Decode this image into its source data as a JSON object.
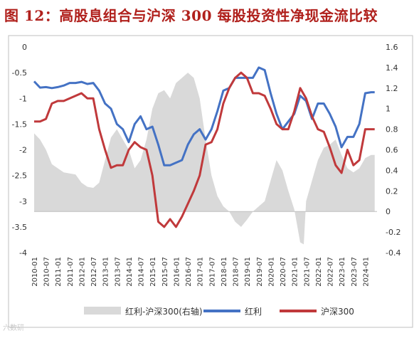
{
  "title": "图 12：高股息组合与沪深 300 每股投资性净现金流比较",
  "watermark": "六数研",
  "chart_data": {
    "type": "line+area",
    "left_axis": {
      "min": -4,
      "max": 0,
      "ticks": [
        0,
        -0.5,
        -1,
        -1.5,
        -2,
        -2.5,
        -3,
        -3.5,
        -4
      ]
    },
    "right_axis": {
      "min": -0.4,
      "max": 1.6,
      "ticks": [
        1.6,
        1.4,
        1.2,
        1,
        0.8,
        0.6,
        0.4,
        0.2,
        0,
        -0.2,
        -0.4
      ]
    },
    "x_tick_labels": [
      "2010-01",
      "2010-07",
      "2011-01",
      "2011-07",
      "2012-01",
      "2012-07",
      "2013-01",
      "2013-07",
      "2014-01",
      "2014-07",
      "2015-01",
      "2015-07",
      "2016-01",
      "2016-07",
      "2017-01",
      "2017-07",
      "2018-01",
      "2018-07",
      "2019-01",
      "2019-07",
      "2020-01",
      "2020-07",
      "2021-01",
      "2021-07",
      "2022-01",
      "2022-07",
      "2023-01",
      "2023-07",
      "2024-01"
    ],
    "series": [
      {
        "name": "红利-沪深300(右轴)",
        "axis": "right",
        "kind": "area",
        "color": "#d9d9d9",
        "points": [
          [
            2010.0,
            0.76
          ],
          [
            2010.25,
            0.7
          ],
          [
            2010.5,
            0.6
          ],
          [
            2010.75,
            0.46
          ],
          [
            2011.0,
            0.42
          ],
          [
            2011.25,
            0.38
          ],
          [
            2011.5,
            0.37
          ],
          [
            2011.75,
            0.36
          ],
          [
            2012.0,
            0.28
          ],
          [
            2012.25,
            0.24
          ],
          [
            2012.5,
            0.23
          ],
          [
            2012.75,
            0.28
          ],
          [
            2013.0,
            0.5
          ],
          [
            2013.25,
            0.72
          ],
          [
            2013.5,
            0.8
          ],
          [
            2013.75,
            0.7
          ],
          [
            2014.0,
            0.6
          ],
          [
            2014.25,
            0.42
          ],
          [
            2014.5,
            0.5
          ],
          [
            2014.75,
            0.7
          ],
          [
            2015.0,
            1.0
          ],
          [
            2015.25,
            1.15
          ],
          [
            2015.5,
            1.18
          ],
          [
            2015.75,
            1.1
          ],
          [
            2016.0,
            1.25
          ],
          [
            2016.25,
            1.3
          ],
          [
            2016.5,
            1.35
          ],
          [
            2016.75,
            1.3
          ],
          [
            2017.0,
            1.1
          ],
          [
            2017.25,
            0.7
          ],
          [
            2017.5,
            0.35
          ],
          [
            2017.75,
            0.15
          ],
          [
            2018.0,
            0.05
          ],
          [
            2018.25,
            0.0
          ],
          [
            2018.5,
            -0.1
          ],
          [
            2018.75,
            -0.15
          ],
          [
            2019.0,
            -0.08
          ],
          [
            2019.25,
            0.0
          ],
          [
            2019.5,
            0.05
          ],
          [
            2019.75,
            0.1
          ],
          [
            2020.0,
            0.3
          ],
          [
            2020.25,
            0.5
          ],
          [
            2020.5,
            0.4
          ],
          [
            2020.75,
            0.2
          ],
          [
            2021.0,
            0.02
          ],
          [
            2021.25,
            -0.3
          ],
          [
            2021.4,
            -0.32
          ],
          [
            2021.5,
            0.1
          ],
          [
            2021.75,
            0.3
          ],
          [
            2022.0,
            0.5
          ],
          [
            2022.25,
            0.62
          ],
          [
            2022.5,
            0.65
          ],
          [
            2022.75,
            0.7
          ],
          [
            2023.0,
            0.55
          ],
          [
            2023.25,
            0.42
          ],
          [
            2023.5,
            0.38
          ],
          [
            2023.75,
            0.42
          ],
          [
            2024.0,
            0.52
          ],
          [
            2024.25,
            0.55
          ],
          [
            2024.4,
            0.55
          ]
        ]
      },
      {
        "name": "红利",
        "axis": "left",
        "kind": "line",
        "color": "#4472c4",
        "points": [
          [
            2010.0,
            -0.67
          ],
          [
            2010.25,
            -0.79
          ],
          [
            2010.5,
            -0.78
          ],
          [
            2010.75,
            -0.8
          ],
          [
            2011.0,
            -0.78
          ],
          [
            2011.25,
            -0.75
          ],
          [
            2011.5,
            -0.7
          ],
          [
            2011.75,
            -0.7
          ],
          [
            2012.0,
            -0.68
          ],
          [
            2012.25,
            -0.72
          ],
          [
            2012.5,
            -0.7
          ],
          [
            2012.75,
            -0.85
          ],
          [
            2013.0,
            -1.1
          ],
          [
            2013.25,
            -1.2
          ],
          [
            2013.5,
            -1.5
          ],
          [
            2013.75,
            -1.6
          ],
          [
            2014.0,
            -1.85
          ],
          [
            2014.25,
            -1.5
          ],
          [
            2014.5,
            -1.35
          ],
          [
            2014.75,
            -1.6
          ],
          [
            2015.0,
            -1.55
          ],
          [
            2015.25,
            -1.9
          ],
          [
            2015.5,
            -2.3
          ],
          [
            2015.75,
            -2.3
          ],
          [
            2016.0,
            -2.25
          ],
          [
            2016.25,
            -2.2
          ],
          [
            2016.5,
            -1.9
          ],
          [
            2016.75,
            -1.7
          ],
          [
            2017.0,
            -1.6
          ],
          [
            2017.25,
            -1.8
          ],
          [
            2017.5,
            -1.6
          ],
          [
            2017.75,
            -1.25
          ],
          [
            2018.0,
            -0.85
          ],
          [
            2018.25,
            -0.8
          ],
          [
            2018.5,
            -0.6
          ],
          [
            2018.75,
            -0.6
          ],
          [
            2019.0,
            -0.6
          ],
          [
            2019.25,
            -0.6
          ],
          [
            2019.5,
            -0.4
          ],
          [
            2019.75,
            -0.45
          ],
          [
            2020.0,
            -0.9
          ],
          [
            2020.25,
            -1.3
          ],
          [
            2020.5,
            -1.6
          ],
          [
            2020.75,
            -1.45
          ],
          [
            2021.0,
            -1.3
          ],
          [
            2021.25,
            -0.95
          ],
          [
            2021.5,
            -1.05
          ],
          [
            2021.75,
            -1.4
          ],
          [
            2022.0,
            -1.1
          ],
          [
            2022.25,
            -1.1
          ],
          [
            2022.5,
            -1.3
          ],
          [
            2022.75,
            -1.55
          ],
          [
            2023.0,
            -1.95
          ],
          [
            2023.25,
            -1.75
          ],
          [
            2023.5,
            -1.75
          ],
          [
            2023.75,
            -1.5
          ],
          [
            2024.0,
            -0.9
          ],
          [
            2024.25,
            -0.88
          ],
          [
            2024.4,
            -0.88
          ]
        ]
      },
      {
        "name": "沪深300",
        "axis": "left",
        "kind": "line",
        "color": "#c0393b",
        "points": [
          [
            2010.0,
            -1.45
          ],
          [
            2010.25,
            -1.45
          ],
          [
            2010.5,
            -1.4
          ],
          [
            2010.75,
            -1.1
          ],
          [
            2011.0,
            -1.05
          ],
          [
            2011.25,
            -1.05
          ],
          [
            2011.5,
            -1.0
          ],
          [
            2011.75,
            -0.95
          ],
          [
            2012.0,
            -0.9
          ],
          [
            2012.25,
            -1.0
          ],
          [
            2012.5,
            -1.0
          ],
          [
            2012.75,
            -1.6
          ],
          [
            2013.0,
            -2.0
          ],
          [
            2013.25,
            -2.35
          ],
          [
            2013.5,
            -2.3
          ],
          [
            2013.75,
            -2.3
          ],
          [
            2014.0,
            -2.0
          ],
          [
            2014.25,
            -1.85
          ],
          [
            2014.5,
            -1.95
          ],
          [
            2014.75,
            -2.0
          ],
          [
            2015.0,
            -2.5
          ],
          [
            2015.25,
            -3.4
          ],
          [
            2015.5,
            -3.5
          ],
          [
            2015.75,
            -3.35
          ],
          [
            2016.0,
            -3.5
          ],
          [
            2016.25,
            -3.3
          ],
          [
            2016.5,
            -3.05
          ],
          [
            2016.75,
            -2.8
          ],
          [
            2017.0,
            -2.5
          ],
          [
            2017.25,
            -1.9
          ],
          [
            2017.5,
            -1.85
          ],
          [
            2017.75,
            -1.6
          ],
          [
            2018.0,
            -1.1
          ],
          [
            2018.25,
            -0.8
          ],
          [
            2018.5,
            -0.6
          ],
          [
            2018.75,
            -0.5
          ],
          [
            2019.0,
            -0.6
          ],
          [
            2019.25,
            -0.9
          ],
          [
            2019.5,
            -0.9
          ],
          [
            2019.75,
            -0.95
          ],
          [
            2020.0,
            -1.2
          ],
          [
            2020.25,
            -1.5
          ],
          [
            2020.5,
            -1.6
          ],
          [
            2020.75,
            -1.6
          ],
          [
            2021.0,
            -1.25
          ],
          [
            2021.25,
            -0.8
          ],
          [
            2021.5,
            -1.0
          ],
          [
            2021.75,
            -1.35
          ],
          [
            2022.0,
            -1.6
          ],
          [
            2022.25,
            -1.65
          ],
          [
            2022.5,
            -1.95
          ],
          [
            2022.75,
            -2.3
          ],
          [
            2023.0,
            -2.45
          ],
          [
            2023.25,
            -2.0
          ],
          [
            2023.5,
            -2.3
          ],
          [
            2023.75,
            -2.2
          ],
          [
            2024.0,
            -1.6
          ],
          [
            2024.25,
            -1.6
          ],
          [
            2024.4,
            -1.6
          ]
        ]
      }
    ],
    "legend": {
      "placement": "bottom",
      "items": [
        {
          "label": "红利-沪深300(右轴)",
          "kind": "area",
          "color": "#d9d9d9"
        },
        {
          "label": "红利",
          "kind": "line",
          "color": "#4472c4"
        },
        {
          "label": "沪深300",
          "kind": "line",
          "color": "#c0393b"
        }
      ]
    }
  }
}
